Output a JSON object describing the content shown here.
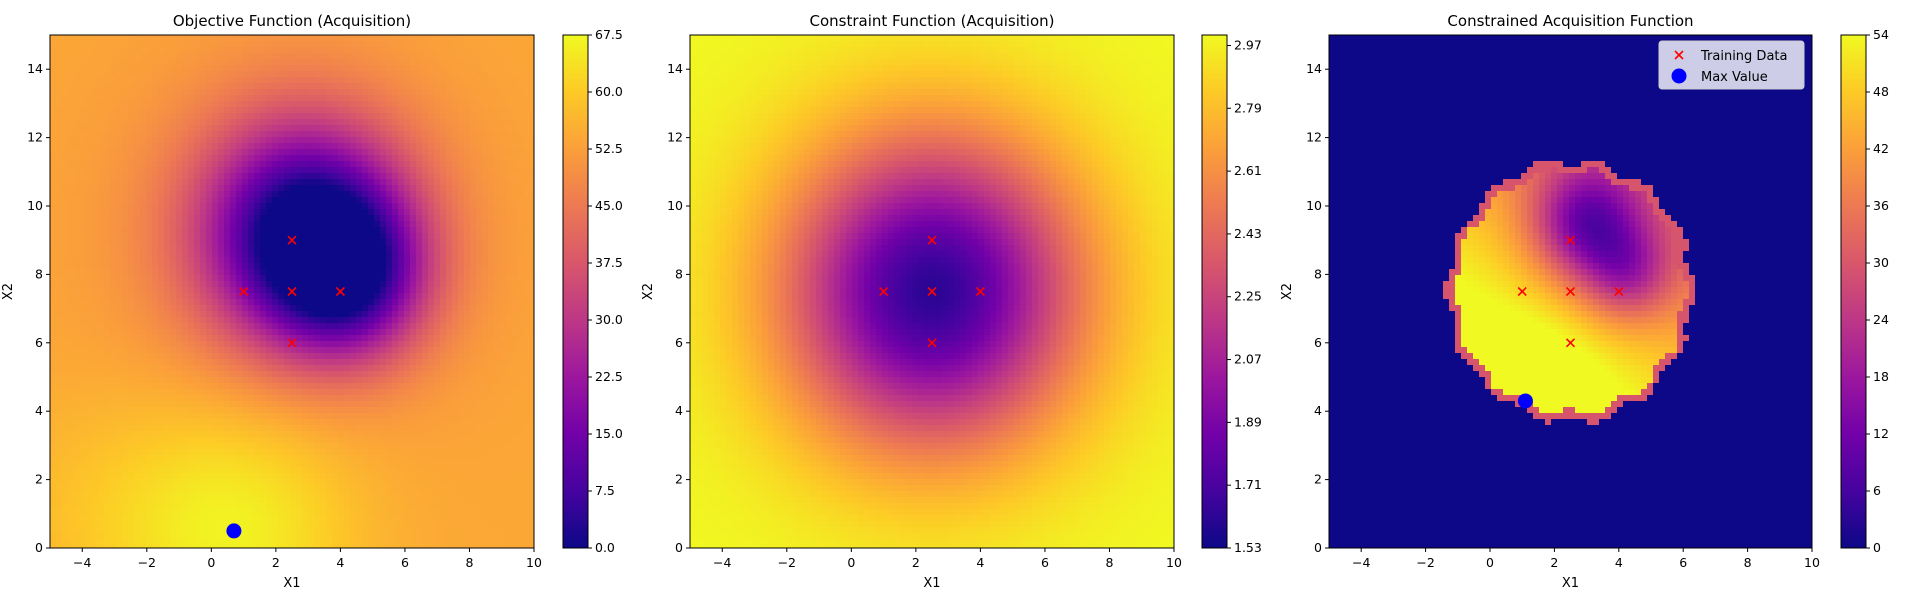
{
  "colormap": [
    "#0d0887",
    "#46039f",
    "#7201a8",
    "#9c179e",
    "#bd3786",
    "#d8576b",
    "#ed7953",
    "#fb9f3a",
    "#fdca26",
    "#f0f921"
  ],
  "marker_colors": {
    "training": "#ff0000",
    "max": "#0000ff"
  },
  "legend": {
    "training": "Training Data",
    "max": "Max Value"
  },
  "chart_data": [
    {
      "type": "heatmap",
      "title": "Objective Function (Acquisition)",
      "xlabel": "X1",
      "ylabel": "X2",
      "xlim": [
        -5,
        10
      ],
      "ylim": [
        0,
        15
      ],
      "xticks": [
        "−4",
        "−2",
        "0",
        "2",
        "4",
        "6",
        "8",
        "10"
      ],
      "xtick_values": [
        -4,
        -2,
        0,
        2,
        4,
        6,
        8,
        10
      ],
      "yticks": [
        "0",
        "2",
        "4",
        "6",
        "8",
        "10",
        "12",
        "14"
      ],
      "ytick_values": [
        0,
        2,
        4,
        6,
        8,
        10,
        12,
        14
      ],
      "colorbar": {
        "range": [
          0,
          67.5
        ],
        "ticks": [
          "0.0",
          "7.5",
          "15.0",
          "22.5",
          "30.0",
          "37.5",
          "45.0",
          "52.5",
          "60.0",
          "67.5"
        ],
        "tick_values": [
          0,
          7.5,
          15,
          22.5,
          30,
          37.5,
          45,
          52.5,
          60,
          67.5
        ]
      },
      "training_points": [
        [
          2.5,
          9.0
        ],
        [
          1.0,
          7.5
        ],
        [
          2.5,
          7.5
        ],
        [
          4.0,
          7.5
        ],
        [
          2.5,
          6.0
        ]
      ],
      "max_point": [
        0.7,
        0.5
      ],
      "legend": false
    },
    {
      "type": "heatmap",
      "title": "Constraint Function (Acquisition)",
      "xlabel": "X1",
      "ylabel": "X2",
      "xlim": [
        -5,
        10
      ],
      "ylim": [
        0,
        15
      ],
      "xticks": [
        "−4",
        "−2",
        "0",
        "2",
        "4",
        "6",
        "8",
        "10"
      ],
      "xtick_values": [
        -4,
        -2,
        0,
        2,
        4,
        6,
        8,
        10
      ],
      "yticks": [
        "0",
        "2",
        "4",
        "6",
        "8",
        "10",
        "12",
        "14"
      ],
      "ytick_values": [
        0,
        2,
        4,
        6,
        8,
        10,
        12,
        14
      ],
      "colorbar": {
        "range": [
          1.53,
          3.0
        ],
        "ticks": [
          "1.53",
          "1.71",
          "1.89",
          "2.07",
          "2.25",
          "2.43",
          "2.61",
          "2.79",
          "2.97"
        ],
        "tick_values": [
          1.53,
          1.71,
          1.89,
          2.07,
          2.25,
          2.43,
          2.61,
          2.79,
          2.97
        ]
      },
      "training_points": [
        [
          2.5,
          9.0
        ],
        [
          1.0,
          7.5
        ],
        [
          2.5,
          7.5
        ],
        [
          4.0,
          7.5
        ],
        [
          2.5,
          6.0
        ]
      ],
      "legend": false
    },
    {
      "type": "heatmap",
      "title": "Constrained Acquisition Function",
      "xlabel": "X1",
      "ylabel": "X2",
      "xlim": [
        -5,
        10
      ],
      "ylim": [
        0,
        15
      ],
      "xticks": [
        "−4",
        "−2",
        "0",
        "2",
        "4",
        "6",
        "8",
        "10"
      ],
      "xtick_values": [
        -4,
        -2,
        0,
        2,
        4,
        6,
        8,
        10
      ],
      "yticks": [
        "0",
        "2",
        "4",
        "6",
        "8",
        "10",
        "12",
        "14"
      ],
      "ytick_values": [
        0,
        2,
        4,
        6,
        8,
        10,
        12,
        14
      ],
      "colorbar": {
        "range": [
          0,
          54
        ],
        "ticks": [
          "0",
          "6",
          "12",
          "18",
          "24",
          "30",
          "36",
          "42",
          "48",
          "54"
        ],
        "tick_values": [
          0,
          6,
          12,
          18,
          24,
          30,
          36,
          42,
          48,
          54
        ]
      },
      "training_points": [
        [
          2.5,
          9.0
        ],
        [
          1.0,
          7.5
        ],
        [
          2.5,
          7.5
        ],
        [
          4.0,
          7.5
        ],
        [
          2.5,
          6.0
        ]
      ],
      "max_point": [
        1.1,
        4.3
      ],
      "feasible_region": {
        "center": [
          2.5,
          7.5
        ],
        "radius": 3.8
      },
      "legend": true,
      "legend_position": "upper right"
    }
  ]
}
